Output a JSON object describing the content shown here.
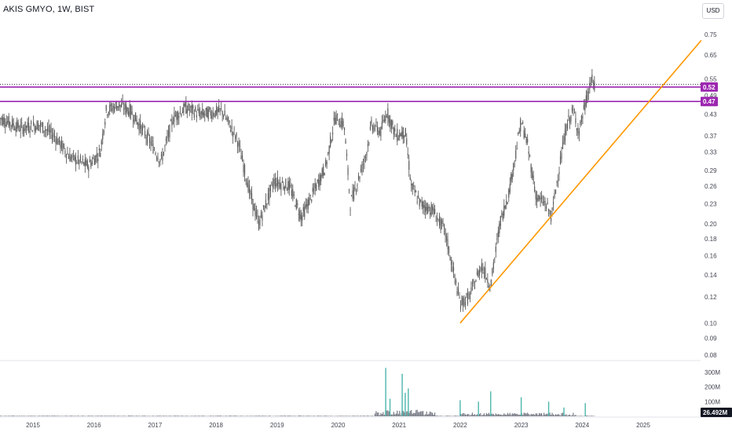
{
  "header": {
    "symbol_title": "AKIS GMYO, 1W, BIST",
    "currency_label": "USD"
  },
  "colors": {
    "candle": "#5d5d5d",
    "horizontal_level": "#9c27b0",
    "trendline": "#ff9800",
    "volume_bar": "#787b86",
    "volume_ma": "#a9a9a9",
    "volume_spike": "#4db6ac",
    "background": "#ffffff"
  },
  "chart_data": {
    "type": "candlestick",
    "title": "AKIS GMYO, 1W, BIST",
    "price_scale": "log",
    "price_ticks": [
      "0.75",
      "0.65",
      "0.55",
      "0.49",
      "0.43",
      "0.37",
      "0.33",
      "0.29",
      "0.26",
      "0.23",
      "0.20",
      "0.18",
      "0.16",
      "0.14",
      "0.12",
      "0.10",
      "0.09",
      "0.08"
    ],
    "x_ticks": [
      "2015",
      "2016",
      "2017",
      "2018",
      "2019",
      "2020",
      "2021",
      "2022",
      "2023",
      "2024",
      "2025"
    ],
    "price_anchors": [
      {
        "t": 2014.45,
        "p": 0.42
      },
      {
        "t": 2014.8,
        "p": 0.39
      },
      {
        "t": 2015.1,
        "p": 0.4
      },
      {
        "t": 2015.35,
        "p": 0.37
      },
      {
        "t": 2015.6,
        "p": 0.32
      },
      {
        "t": 2015.9,
        "p": 0.3
      },
      {
        "t": 2016.1,
        "p": 0.33
      },
      {
        "t": 2016.2,
        "p": 0.44
      },
      {
        "t": 2016.4,
        "p": 0.46
      },
      {
        "t": 2016.6,
        "p": 0.44
      },
      {
        "t": 2016.9,
        "p": 0.36
      },
      {
        "t": 2017.1,
        "p": 0.31
      },
      {
        "t": 2017.3,
        "p": 0.42
      },
      {
        "t": 2017.5,
        "p": 0.45
      },
      {
        "t": 2017.75,
        "p": 0.43
      },
      {
        "t": 2018.1,
        "p": 0.44
      },
      {
        "t": 2018.35,
        "p": 0.36
      },
      {
        "t": 2018.55,
        "p": 0.25
      },
      {
        "t": 2018.7,
        "p": 0.2
      },
      {
        "t": 2018.95,
        "p": 0.27
      },
      {
        "t": 2019.2,
        "p": 0.26
      },
      {
        "t": 2019.4,
        "p": 0.21
      },
      {
        "t": 2019.6,
        "p": 0.25
      },
      {
        "t": 2019.8,
        "p": 0.3
      },
      {
        "t": 2019.95,
        "p": 0.42
      },
      {
        "t": 2020.1,
        "p": 0.4
      },
      {
        "t": 2020.2,
        "p": 0.23
      },
      {
        "t": 2020.45,
        "p": 0.32
      },
      {
        "t": 2020.55,
        "p": 0.4
      },
      {
        "t": 2020.7,
        "p": 0.38
      },
      {
        "t": 2020.8,
        "p": 0.44
      },
      {
        "t": 2020.95,
        "p": 0.37
      },
      {
        "t": 2021.1,
        "p": 0.38
      },
      {
        "t": 2021.2,
        "p": 0.26
      },
      {
        "t": 2021.35,
        "p": 0.23
      },
      {
        "t": 2021.55,
        "p": 0.22
      },
      {
        "t": 2021.75,
        "p": 0.19
      },
      {
        "t": 2021.9,
        "p": 0.14
      },
      {
        "t": 2022.0,
        "p": 0.115
      },
      {
        "t": 2022.15,
        "p": 0.12
      },
      {
        "t": 2022.35,
        "p": 0.15
      },
      {
        "t": 2022.5,
        "p": 0.13
      },
      {
        "t": 2022.65,
        "p": 0.2
      },
      {
        "t": 2022.8,
        "p": 0.25
      },
      {
        "t": 2023.0,
        "p": 0.41
      },
      {
        "t": 2023.1,
        "p": 0.35
      },
      {
        "t": 2023.25,
        "p": 0.24
      },
      {
        "t": 2023.4,
        "p": 0.23
      },
      {
        "t": 2023.5,
        "p": 0.21
      },
      {
        "t": 2023.6,
        "p": 0.28
      },
      {
        "t": 2023.75,
        "p": 0.4
      },
      {
        "t": 2023.85,
        "p": 0.44
      },
      {
        "t": 2023.95,
        "p": 0.38
      },
      {
        "t": 2024.0,
        "p": 0.42
      },
      {
        "t": 2024.1,
        "p": 0.5
      },
      {
        "t": 2024.15,
        "p": 0.55
      },
      {
        "t": 2024.2,
        "p": 0.52
      }
    ],
    "horizontal_levels": [
      {
        "price": 0.52,
        "label": "0.52",
        "role": "upper"
      },
      {
        "price": 0.47,
        "label": "0.47",
        "role": "lower"
      }
    ],
    "trendline": {
      "from": {
        "t": 2022.0,
        "p": 0.1
      },
      "to": {
        "t": 2025.95,
        "p": 0.72
      }
    },
    "volume": {
      "ticks": [
        "300M",
        "200M",
        "100M"
      ],
      "last_value_label": "26.492M",
      "spikes": [
        {
          "t": 2020.78,
          "v": 330
        },
        {
          "t": 2021.05,
          "v": 290
        },
        {
          "t": 2020.85,
          "v": 120
        },
        {
          "t": 2021.1,
          "v": 160
        },
        {
          "t": 2021.15,
          "v": 190
        },
        {
          "t": 2022.0,
          "v": 110
        },
        {
          "t": 2022.3,
          "v": 100
        },
        {
          "t": 2022.5,
          "v": 170
        },
        {
          "t": 2023.0,
          "v": 130
        },
        {
          "t": 2023.45,
          "v": 100
        },
        {
          "t": 2023.7,
          "v": 60
        },
        {
          "t": 2024.05,
          "v": 90
        }
      ]
    }
  }
}
